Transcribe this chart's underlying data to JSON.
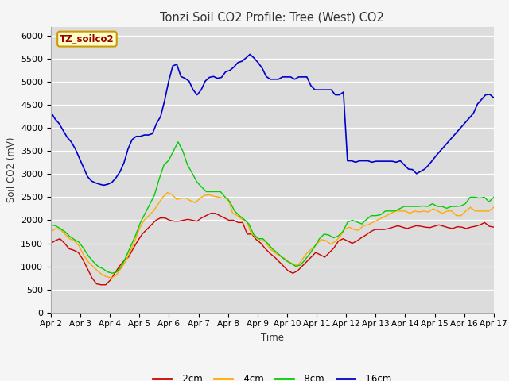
{
  "title": "Tonzi Soil CO2 Profile: Tree (West) CO2",
  "xlabel": "Time",
  "ylabel": "Soil CO2 (mV)",
  "watermark": "TZ_soilco2",
  "ylim": [
    0,
    6200
  ],
  "yticks": [
    0,
    500,
    1000,
    1500,
    2000,
    2500,
    3000,
    3500,
    4000,
    4500,
    5000,
    5500,
    6000
  ],
  "colors": {
    "neg2cm": "#cc0000",
    "neg4cm": "#ffaa00",
    "neg8cm": "#00cc00",
    "neg16cm": "#0000cc"
  },
  "legend_labels": [
    "-2cm",
    "-4cm",
    "-8cm",
    "-16cm"
  ],
  "bg_color": "#dcdcdc",
  "fig_bg_color": "#f5f5f5",
  "x_labels": [
    "Apr 2",
    "Apr 3",
    "Apr 4",
    "Apr 5",
    "Apr 6",
    "Apr 7",
    "Apr 8",
    "Apr 9",
    "Apr 10",
    "Apr 11",
    "Apr 12",
    "Apr 13",
    "Apr 14",
    "Apr 15",
    "Apr 16",
    "Apr 17"
  ],
  "neg2cm": [
    1500,
    1560,
    1600,
    1500,
    1380,
    1350,
    1300,
    1150,
    950,
    750,
    620,
    600,
    600,
    700,
    850,
    1000,
    1120,
    1200,
    1380,
    1550,
    1700,
    1800,
    1900,
    2000,
    2050,
    2050,
    2000,
    1980,
    1980,
    2000,
    2020,
    2000,
    1980,
    2050,
    2100,
    2150,
    2150,
    2100,
    2050,
    2000,
    2000,
    1950,
    1950,
    1700,
    1700,
    1580,
    1500,
    1380,
    1280,
    1200,
    1100,
    1000,
    900,
    850,
    900,
    1000,
    1100,
    1200,
    1300,
    1250,
    1200,
    1300,
    1400,
    1550,
    1600,
    1550,
    1500,
    1550,
    1620,
    1680,
    1750,
    1800,
    1800,
    1800,
    1820,
    1850,
    1880,
    1850,
    1820,
    1850,
    1880,
    1870,
    1850,
    1840,
    1870,
    1900,
    1870,
    1840,
    1820,
    1860,
    1850,
    1820,
    1850,
    1870,
    1900,
    1950,
    1870,
    1850
  ],
  "neg4cm": [
    1750,
    1820,
    1800,
    1700,
    1600,
    1550,
    1450,
    1250,
    1100,
    1000,
    900,
    820,
    770,
    750,
    800,
    950,
    1100,
    1320,
    1550,
    1820,
    2000,
    2100,
    2200,
    2350,
    2500,
    2600,
    2560,
    2450,
    2480,
    2480,
    2420,
    2380,
    2480,
    2540,
    2550,
    2520,
    2500,
    2480,
    2480,
    2150,
    2100,
    2020,
    1980,
    1700,
    1650,
    1560,
    1540,
    1380,
    1300,
    1230,
    1180,
    1100,
    1050,
    1020,
    1160,
    1300,
    1380,
    1480,
    1580,
    1560,
    1480,
    1540,
    1640,
    1800,
    1850,
    1800,
    1780,
    1880,
    1900,
    1950,
    2000,
    2050,
    2100,
    2150,
    2200,
    2200,
    2200,
    2150,
    2200,
    2180,
    2200,
    2180,
    2250,
    2200,
    2150,
    2200,
    2200,
    2100,
    2100,
    2200,
    2280,
    2200,
    2200,
    2200,
    2200,
    2280
  ],
  "neg8cm": [
    1900,
    1880,
    1820,
    1750,
    1650,
    1580,
    1520,
    1380,
    1220,
    1100,
    1000,
    950,
    880,
    850,
    880,
    1000,
    1220,
    1450,
    1680,
    1950,
    2150,
    2350,
    2550,
    2900,
    3200,
    3300,
    3500,
    3700,
    3500,
    3200,
    3020,
    2830,
    2720,
    2620,
    2620,
    2620,
    2620,
    2500,
    2400,
    2200,
    2100,
    2020,
    1920,
    1700,
    1600,
    1600,
    1500,
    1380,
    1300,
    1200,
    1120,
    1060,
    1000,
    1030,
    1150,
    1280,
    1430,
    1600,
    1700,
    1680,
    1620,
    1660,
    1760,
    1960,
    2000,
    1960,
    1920,
    2020,
    2100,
    2100,
    2120,
    2200,
    2200,
    2200,
    2250,
    2300,
    2300,
    2300,
    2300,
    2310,
    2300,
    2360,
    2300,
    2300,
    2260,
    2300,
    2300,
    2310,
    2360,
    2500,
    2500,
    2480,
    2500,
    2400,
    2500
  ],
  "neg16cm": [
    4350,
    4200,
    4100,
    3950,
    3800,
    3700,
    3550,
    3350,
    3150,
    2950,
    2850,
    2810,
    2780,
    2760,
    2780,
    2820,
    2920,
    3050,
    3250,
    3550,
    3750,
    3820,
    3820,
    3850,
    3850,
    3880,
    4100,
    4250,
    4600,
    5020,
    5350,
    5380,
    5120,
    5080,
    5020,
    4830,
    4720,
    4830,
    5020,
    5100,
    5120,
    5080,
    5100,
    5220,
    5250,
    5320,
    5420,
    5450,
    5520,
    5600,
    5520,
    5420,
    5300,
    5120,
    5060,
    5060,
    5060,
    5110,
    5110,
    5110,
    5060,
    5110,
    5110,
    5110,
    4920,
    4830,
    4830,
    4830,
    4830,
    4830,
    4720,
    4720,
    4780,
    3290,
    3290,
    3260,
    3290,
    3290,
    3290,
    3260,
    3280,
    3280,
    3280,
    3280,
    3280,
    3260,
    3290,
    3200,
    3110,
    3100,
    3010,
    3060,
    3110,
    3200,
    3310,
    3420,
    3520,
    3620,
    3720,
    3820,
    3920,
    4020,
    4120,
    4220,
    4320,
    4520,
    4620,
    4720,
    4730,
    4660
  ]
}
